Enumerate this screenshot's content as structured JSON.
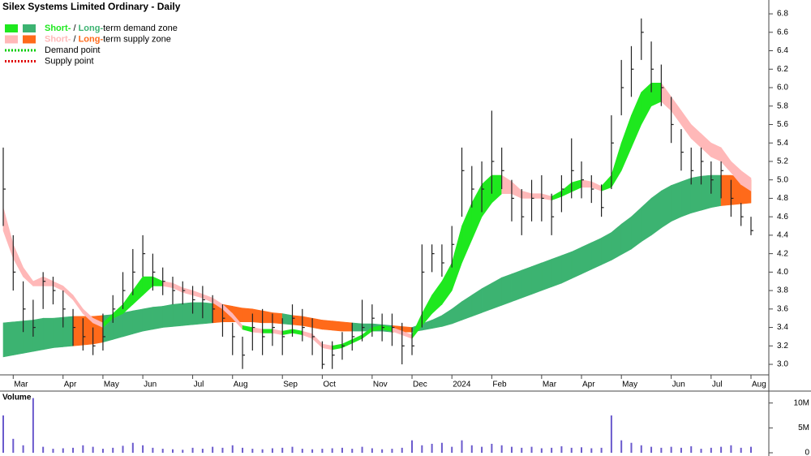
{
  "chart_data": {
    "type": "candlestick",
    "title": "Silex Systems Limited Ordinary - Daily",
    "categories": [
      null,
      "Mar",
      null,
      null,
      null,
      null,
      "Apr",
      null,
      null,
      null,
      "May",
      null,
      null,
      null,
      "Jun",
      null,
      null,
      null,
      null,
      "Jul",
      null,
      null,
      null,
      "Aug",
      null,
      null,
      null,
      null,
      "Sep",
      null,
      null,
      null,
      "Oct",
      null,
      null,
      null,
      null,
      "Nov",
      null,
      null,
      null,
      "Dec",
      null,
      null,
      null,
      "2024",
      null,
      null,
      null,
      "Feb",
      null,
      null,
      null,
      null,
      "Mar",
      null,
      null,
      null,
      "Apr",
      null,
      null,
      null,
      "May",
      null,
      null,
      null,
      null,
      "Jun",
      null,
      null,
      null,
      "Jul",
      null,
      null,
      null,
      "Aug"
    ],
    "close": [
      4.9,
      4.0,
      3.6,
      3.4,
      3.9,
      3.8,
      3.6,
      3.4,
      3.3,
      3.2,
      3.3,
      3.6,
      3.8,
      4.0,
      4.2,
      4.0,
      3.9,
      3.8,
      3.8,
      3.7,
      3.7,
      3.6,
      3.5,
      3.3,
      3.1,
      3.4,
      3.3,
      3.4,
      3.3,
      3.5,
      3.4,
      3.3,
      3.0,
      3.1,
      3.2,
      3.3,
      3.4,
      3.5,
      3.4,
      3.4,
      3.2,
      3.2,
      4.0,
      4.2,
      4.1,
      4.3,
      5.1,
      4.9,
      4.9,
      5.2,
      5.1,
      4.8,
      4.6,
      4.8,
      4.8,
      4.6,
      4.9,
      5.1,
      5.0,
      4.9,
      4.7,
      5.4,
      6.0,
      6.2,
      6.6,
      6.2,
      6.0,
      5.6,
      5.3,
      5.1,
      5.2,
      5.0,
      5.1,
      4.8,
      4.6,
      4.45
    ],
    "high": [
      5.35,
      4.4,
      3.9,
      3.7,
      4.0,
      3.95,
      3.8,
      3.6,
      3.5,
      3.4,
      3.55,
      3.75,
      4.0,
      4.25,
      4.4,
      4.2,
      4.05,
      3.95,
      3.9,
      3.85,
      3.85,
      3.75,
      3.65,
      3.45,
      3.3,
      3.55,
      3.6,
      3.55,
      3.5,
      3.65,
      3.6,
      3.5,
      3.25,
      3.25,
      3.35,
      3.45,
      3.7,
      3.65,
      3.55,
      3.55,
      3.45,
      3.4,
      4.3,
      4.3,
      4.3,
      4.5,
      5.35,
      5.15,
      5.2,
      5.75,
      5.35,
      5.0,
      4.9,
      5.0,
      5.05,
      4.85,
      5.05,
      5.45,
      5.2,
      5.05,
      4.95,
      5.7,
      6.3,
      6.45,
      6.75,
      6.5,
      6.25,
      5.9,
      5.55,
      5.35,
      5.35,
      5.2,
      5.2,
      5.0,
      4.75,
      4.6
    ],
    "low": [
      4.5,
      3.8,
      3.35,
      3.3,
      3.6,
      3.65,
      3.4,
      3.2,
      3.15,
      3.1,
      3.15,
      3.45,
      3.6,
      3.75,
      3.95,
      3.8,
      3.75,
      3.65,
      3.65,
      3.55,
      3.5,
      3.45,
      3.3,
      3.1,
      2.95,
      3.15,
      3.1,
      3.2,
      3.1,
      3.3,
      3.25,
      3.1,
      2.95,
      2.95,
      3.05,
      3.15,
      3.25,
      3.3,
      3.25,
      3.2,
      3.0,
      3.1,
      3.4,
      4.0,
      3.95,
      4.05,
      4.6,
      4.7,
      4.65,
      4.85,
      4.9,
      4.55,
      4.4,
      4.55,
      4.55,
      4.4,
      4.65,
      4.8,
      4.8,
      4.75,
      4.6,
      4.9,
      5.7,
      5.9,
      6.3,
      5.95,
      5.8,
      5.4,
      5.1,
      4.95,
      4.95,
      4.85,
      4.8,
      4.6,
      4.5,
      4.4
    ],
    "short_zone": {
      "upper": [
        4.7,
        4.3,
        4.05,
        3.9,
        3.95,
        3.9,
        3.85,
        3.75,
        3.6,
        3.5,
        3.45,
        3.55,
        3.65,
        3.8,
        3.95,
        3.95,
        3.9,
        3.88,
        3.83,
        3.8,
        3.76,
        3.72,
        3.65,
        3.55,
        3.42,
        3.4,
        3.38,
        3.38,
        3.36,
        3.38,
        3.36,
        3.33,
        3.22,
        3.2,
        3.22,
        3.27,
        3.32,
        3.4,
        3.42,
        3.4,
        3.36,
        3.32,
        3.55,
        3.75,
        3.9,
        4.1,
        4.5,
        4.75,
        4.95,
        5.05,
        5.05,
        4.98,
        4.88,
        4.85,
        4.85,
        4.82,
        4.88,
        4.97,
        5.0,
        4.98,
        4.93,
        5.05,
        5.4,
        5.7,
        5.95,
        6.05,
        6.05,
        5.9,
        5.75,
        5.6,
        5.5,
        5.4,
        5.35,
        5.2,
        5.1,
        5.02
      ],
      "lower": [
        4.45,
        4.15,
        3.95,
        3.85,
        3.85,
        3.85,
        3.8,
        3.7,
        3.55,
        3.45,
        3.4,
        3.5,
        3.55,
        3.65,
        3.75,
        3.85,
        3.85,
        3.83,
        3.78,
        3.75,
        3.72,
        3.67,
        3.6,
        3.5,
        3.38,
        3.35,
        3.34,
        3.34,
        3.32,
        3.34,
        3.32,
        3.28,
        3.18,
        3.16,
        3.18,
        3.23,
        3.28,
        3.36,
        3.38,
        3.36,
        3.32,
        3.28,
        3.42,
        3.55,
        3.65,
        3.8,
        4.1,
        4.35,
        4.6,
        4.75,
        4.85,
        4.85,
        4.8,
        4.8,
        4.8,
        4.78,
        4.82,
        4.87,
        4.92,
        4.92,
        4.88,
        4.92,
        5.1,
        5.35,
        5.6,
        5.8,
        5.85,
        5.75,
        5.6,
        5.45,
        5.35,
        5.25,
        5.2,
        5.08,
        4.95,
        4.88
      ]
    },
    "long_zone": {
      "upper": [
        3.45,
        3.46,
        3.47,
        3.48,
        3.5,
        3.5,
        3.51,
        3.52,
        3.52,
        3.52,
        3.53,
        3.54,
        3.56,
        3.58,
        3.6,
        3.62,
        3.63,
        3.65,
        3.66,
        3.67,
        3.67,
        3.66,
        3.65,
        3.63,
        3.61,
        3.6,
        3.58,
        3.56,
        3.55,
        3.53,
        3.52,
        3.5,
        3.48,
        3.47,
        3.46,
        3.45,
        3.44,
        3.44,
        3.43,
        3.42,
        3.41,
        3.4,
        3.44,
        3.48,
        3.53,
        3.6,
        3.68,
        3.75,
        3.82,
        3.88,
        3.94,
        3.98,
        4.02,
        4.06,
        4.1,
        4.14,
        4.18,
        4.22,
        4.27,
        4.32,
        4.37,
        4.43,
        4.52,
        4.6,
        4.7,
        4.8,
        4.88,
        4.94,
        4.98,
        5.02,
        5.04,
        5.05,
        5.05,
        5.05,
        5.03,
        5.0
      ],
      "lower": [
        3.08,
        3.1,
        3.12,
        3.14,
        3.16,
        3.18,
        3.19,
        3.2,
        3.21,
        3.22,
        3.24,
        3.27,
        3.3,
        3.33,
        3.36,
        3.38,
        3.4,
        3.41,
        3.42,
        3.43,
        3.44,
        3.45,
        3.46,
        3.46,
        3.46,
        3.46,
        3.45,
        3.45,
        3.44,
        3.43,
        3.42,
        3.4,
        3.38,
        3.37,
        3.36,
        3.36,
        3.36,
        3.36,
        3.36,
        3.35,
        3.35,
        3.35,
        3.37,
        3.39,
        3.41,
        3.44,
        3.48,
        3.52,
        3.56,
        3.6,
        3.64,
        3.68,
        3.72,
        3.76,
        3.8,
        3.84,
        3.88,
        3.93,
        3.98,
        4.03,
        4.08,
        4.13,
        4.19,
        4.25,
        4.33,
        4.4,
        4.48,
        4.55,
        4.6,
        4.64,
        4.67,
        4.7,
        4.72,
        4.73,
        4.74,
        4.75
      ]
    },
    "colors": {
      "short_demand": "#1ee81e",
      "long_demand": "#3cb371",
      "short_supply": "#ffb8b8",
      "long_supply": "#ff6a1a",
      "candle": "#222222"
    },
    "legend": [
      {
        "short": "Short-",
        "sep": " / ",
        "long": "Long-",
        "rest": "term demand zone"
      },
      {
        "short": "Short-",
        "sep": " / ",
        "long": "Long-",
        "rest": "term supply zone"
      },
      {
        "label": "Demand point",
        "color": "#00cc00"
      },
      {
        "label": "Supply point",
        "color": "#e00000"
      }
    ],
    "ylim": [
      2.886,
      6.95
    ],
    "yticks": [
      {
        "value": 3,
        "label": "3.0"
      },
      3.2,
      3.4,
      3.6,
      3.8,
      {
        "value": 4,
        "label": "4.0"
      },
      4.2,
      4.4,
      4.6,
      4.8,
      {
        "value": 5,
        "label": "5.0"
      },
      5.2,
      5.4,
      5.6,
      5.8,
      {
        "value": 6,
        "label": "6.0"
      },
      6.2,
      6.4,
      6.6,
      6.8
    ],
    "volume": {
      "label": "Volume",
      "color": "#6a5acd",
      "values": [
        7.5,
        2.8,
        1.5,
        11,
        1.2,
        0.8,
        0.9,
        1.0,
        1.5,
        1.2,
        0.8,
        1.0,
        1.4,
        2.0,
        1.5,
        1.0,
        0.8,
        0.7,
        0.6,
        1.0,
        0.8,
        1.2,
        1.0,
        1.5,
        1.0,
        0.8,
        0.7,
        0.9,
        1.0,
        1.2,
        0.8,
        0.7,
        0.8,
        0.9,
        1.0,
        0.8,
        1.2,
        0.9,
        0.7,
        0.8,
        1.0,
        2.5,
        1.5,
        1.8,
        2.0,
        1.2,
        2.5,
        1.5,
        1.2,
        1.8,
        1.5,
        1.2,
        1.0,
        1.2,
        0.9,
        1.0,
        1.3,
        1.0,
        1.1,
        0.9,
        1.0,
        7.5,
        2.5,
        2.0,
        1.5,
        1.2,
        1.0,
        1.2,
        1.0,
        1.3,
        0.8,
        1.0,
        1.2,
        1.5,
        1.0,
        1.2
      ],
      "ylim": [
        0,
        12.4
      ],
      "yticks": [
        0,
        {
          "value": 5,
          "label": "5M"
        },
        {
          "value": 10,
          "label": "10M"
        }
      ]
    }
  }
}
